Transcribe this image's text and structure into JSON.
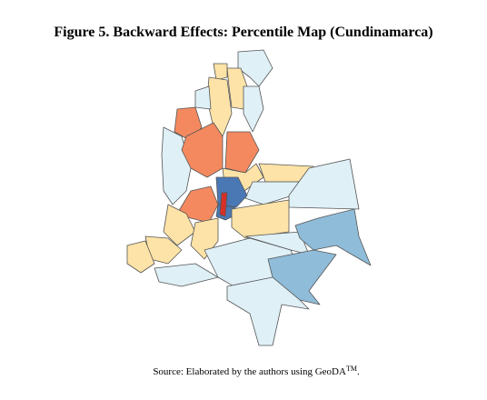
{
  "header": {
    "title": "Figure 5. Backward Effects: Percentile Map (Cundinamarca)"
  },
  "source": {
    "text": "Source: Elaborated by the authors using GeoDA",
    "superscript": "TM",
    "end": "."
  }
}
